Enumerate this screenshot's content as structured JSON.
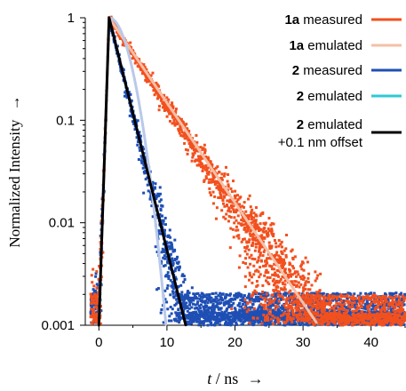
{
  "chart_data": {
    "type": "line",
    "xlabel_italic": "t",
    "xlabel_rest": " / ns",
    "xlabel_arrow": "→",
    "ylabel": "Normalized Intensity",
    "ylabel_arrow": "→",
    "xlim": [
      -2,
      45
    ],
    "ylim_log": [
      0.001,
      1
    ],
    "yscale": "log",
    "xticks": [
      0,
      10,
      20,
      30,
      40
    ],
    "xtick_labels": [
      "0",
      "10",
      "20",
      "30",
      "40"
    ],
    "yticks": [
      1,
      0.1,
      0.01,
      0.001
    ],
    "ytick_labels": [
      "1",
      "0.1",
      "0.01",
      "0.001"
    ],
    "legend_position": "top-right",
    "series": [
      {
        "key": "s_1a_meas",
        "label_bold": "1a",
        "label_rest": " measured",
        "color": "#f2501e",
        "kind": "scatter-noisy",
        "rise_start": 0.0,
        "peak_x": 1.5,
        "decay_tau_ns": 4.3,
        "noise_floor": 0.0011,
        "x_end": 45
      },
      {
        "key": "s_1a_emu",
        "label_bold": "1a",
        "label_rest": " emulated",
        "color": "#f5bfa6",
        "kind": "line",
        "rise_start": 0.0,
        "peak_x": 1.5,
        "decay_tau_ns": 4.45,
        "x_end": 32
      },
      {
        "key": "s_2_meas",
        "label_bold": "2",
        "label_rest": " measured",
        "color": "#1f4fb4",
        "kind": "scatter-noisy",
        "rise_start": 0.0,
        "peak_x": 1.5,
        "decay_tau_ns": 1.6,
        "noise_floor": 0.00115,
        "x_end": 45
      },
      {
        "key": "s_2_emu_light",
        "label_bold": "",
        "label_rest": "",
        "color": "#b9c9ea",
        "kind": "gaussian",
        "rise_start": 0.0,
        "peak_x": 1.5,
        "x_end": 10.0
      },
      {
        "key": "s_2_emu",
        "label_bold": "2",
        "label_rest": " emulated",
        "color": "#2ec9d6",
        "kind": "legend-only"
      },
      {
        "key": "s_2_offset",
        "label_bold": "2",
        "label_rest": " emulated",
        "label_line2": "+0.1 nm offset",
        "color": "#000000",
        "kind": "line",
        "rise_start": 0.0,
        "peak_x": 1.5,
        "decay_tau_ns": 1.63,
        "x_end": 13.5
      }
    ]
  }
}
